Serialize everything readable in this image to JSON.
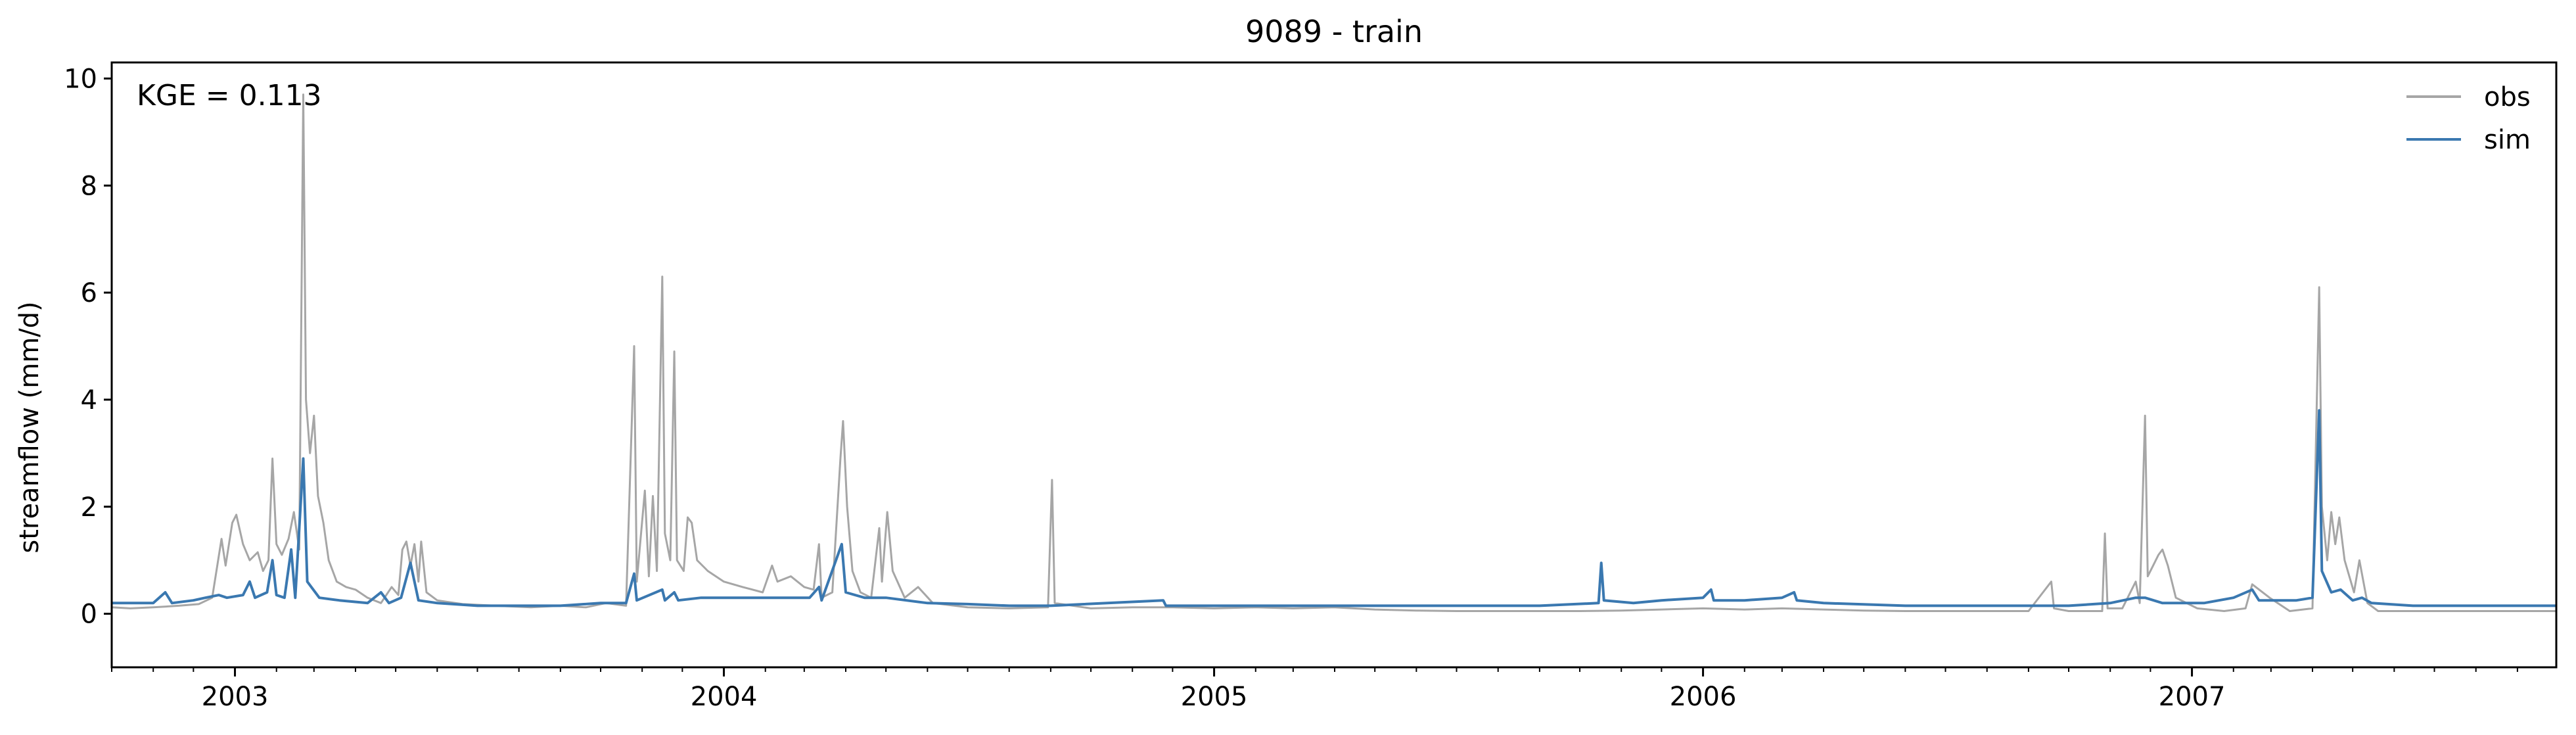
{
  "chart_data": {
    "type": "line",
    "title": "9089 - train",
    "xlabel": "",
    "ylabel": "streamflow (mm/d)",
    "annotation": "KGE = 0.113",
    "xlim": [
      "2002-10-01",
      "2007-09-30"
    ],
    "ylim": [
      -1.0,
      10.3
    ],
    "y_ticks": [
      0,
      2,
      4,
      6,
      8,
      10
    ],
    "x_ticks": [
      {
        "date": "2003-01-01",
        "label": "2003"
      },
      {
        "date": "2004-01-01",
        "label": "2004"
      },
      {
        "date": "2005-01-01",
        "label": "2005"
      },
      {
        "date": "2006-01-01",
        "label": "2006"
      },
      {
        "date": "2007-01-01",
        "label": "2007"
      }
    ],
    "grid": false,
    "legend": {
      "position": "top-right"
    },
    "series": [
      {
        "name": "obs",
        "color": "#a6a6a6",
        "points": [
          [
            "2002-10-01",
            0.12
          ],
          [
            "2002-10-15",
            0.1
          ],
          [
            "2002-11-01",
            0.12
          ],
          [
            "2002-11-20",
            0.15
          ],
          [
            "2002-12-05",
            0.18
          ],
          [
            "2002-12-15",
            0.3
          ],
          [
            "2002-12-22",
            1.4
          ],
          [
            "2002-12-25",
            0.9
          ],
          [
            "2002-12-30",
            1.7
          ],
          [
            "2003-01-02",
            1.85
          ],
          [
            "2003-01-07",
            1.3
          ],
          [
            "2003-01-12",
            1.0
          ],
          [
            "2003-01-18",
            1.15
          ],
          [
            "2003-01-22",
            0.8
          ],
          [
            "2003-01-26",
            1.0
          ],
          [
            "2003-01-29",
            2.9
          ],
          [
            "2003-02-01",
            1.3
          ],
          [
            "2003-02-05",
            1.1
          ],
          [
            "2003-02-10",
            1.4
          ],
          [
            "2003-02-14",
            1.9
          ],
          [
            "2003-02-18",
            1.2
          ],
          [
            "2003-02-21",
            9.7
          ],
          [
            "2003-02-23",
            4.0
          ],
          [
            "2003-02-26",
            3.0
          ],
          [
            "2003-03-01",
            3.7
          ],
          [
            "2003-03-04",
            2.2
          ],
          [
            "2003-03-08",
            1.7
          ],
          [
            "2003-03-12",
            1.0
          ],
          [
            "2003-03-18",
            0.6
          ],
          [
            "2003-03-25",
            0.5
          ],
          [
            "2003-04-01",
            0.45
          ],
          [
            "2003-04-10",
            0.3
          ],
          [
            "2003-04-20",
            0.2
          ],
          [
            "2003-04-28",
            0.5
          ],
          [
            "2003-05-03",
            0.35
          ],
          [
            "2003-05-06",
            1.2
          ],
          [
            "2003-05-09",
            1.35
          ],
          [
            "2003-05-12",
            0.9
          ],
          [
            "2003-05-15",
            1.3
          ],
          [
            "2003-05-18",
            0.6
          ],
          [
            "2003-05-20",
            1.35
          ],
          [
            "2003-05-24",
            0.4
          ],
          [
            "2003-06-01",
            0.25
          ],
          [
            "2003-06-20",
            0.18
          ],
          [
            "2003-07-15",
            0.15
          ],
          [
            "2003-08-10",
            0.12
          ],
          [
            "2003-09-01",
            0.15
          ],
          [
            "2003-09-20",
            0.12
          ],
          [
            "2003-10-05",
            0.2
          ],
          [
            "2003-10-20",
            0.15
          ],
          [
            "2003-10-26",
            5.0
          ],
          [
            "2003-10-28",
            0.6
          ],
          [
            "2003-11-03",
            2.3
          ],
          [
            "2003-11-06",
            0.7
          ],
          [
            "2003-11-09",
            2.2
          ],
          [
            "2003-11-12",
            0.8
          ],
          [
            "2003-11-16",
            6.3
          ],
          [
            "2003-11-18",
            1.5
          ],
          [
            "2003-11-22",
            1.0
          ],
          [
            "2003-11-25",
            4.9
          ],
          [
            "2003-11-27",
            1.0
          ],
          [
            "2003-12-02",
            0.8
          ],
          [
            "2003-12-05",
            1.8
          ],
          [
            "2003-12-08",
            1.7
          ],
          [
            "2003-12-12",
            1.0
          ],
          [
            "2003-12-20",
            0.8
          ],
          [
            "2004-01-01",
            0.6
          ],
          [
            "2004-01-15",
            0.5
          ],
          [
            "2004-01-30",
            0.4
          ],
          [
            "2004-02-06",
            0.9
          ],
          [
            "2004-02-10",
            0.6
          ],
          [
            "2004-02-20",
            0.7
          ],
          [
            "2004-03-01",
            0.5
          ],
          [
            "2004-03-08",
            0.45
          ],
          [
            "2004-03-12",
            1.3
          ],
          [
            "2004-03-14",
            0.3
          ],
          [
            "2004-03-22",
            0.4
          ],
          [
            "2004-03-28",
            2.9
          ],
          [
            "2004-03-30",
            3.6
          ],
          [
            "2004-04-02",
            2.0
          ],
          [
            "2004-04-06",
            0.8
          ],
          [
            "2004-04-12",
            0.4
          ],
          [
            "2004-04-20",
            0.3
          ],
          [
            "2004-04-26",
            1.6
          ],
          [
            "2004-04-28",
            0.6
          ],
          [
            "2004-05-02",
            1.9
          ],
          [
            "2004-05-06",
            0.8
          ],
          [
            "2004-05-15",
            0.3
          ],
          [
            "2004-05-25",
            0.5
          ],
          [
            "2004-06-05",
            0.2
          ],
          [
            "2004-07-01",
            0.12
          ],
          [
            "2004-08-01",
            0.1
          ],
          [
            "2004-08-30",
            0.12
          ],
          [
            "2004-09-02",
            2.5
          ],
          [
            "2004-09-04",
            0.2
          ],
          [
            "2004-10-01",
            0.1
          ],
          [
            "2004-11-01",
            0.12
          ],
          [
            "2004-12-01",
            0.12
          ],
          [
            "2005-01-01",
            0.1
          ],
          [
            "2005-02-01",
            0.12
          ],
          [
            "2005-03-01",
            0.1
          ],
          [
            "2005-04-01",
            0.12
          ],
          [
            "2005-05-01",
            0.08
          ],
          [
            "2005-06-01",
            0.06
          ],
          [
            "2005-07-01",
            0.05
          ],
          [
            "2005-08-01",
            0.05
          ],
          [
            "2005-09-01",
            0.05
          ],
          [
            "2005-10-01",
            0.05
          ],
          [
            "2005-11-01",
            0.06
          ],
          [
            "2005-12-01",
            0.08
          ],
          [
            "2006-01-01",
            0.1
          ],
          [
            "2006-02-01",
            0.08
          ],
          [
            "2006-03-01",
            0.1
          ],
          [
            "2006-04-01",
            0.08
          ],
          [
            "2006-05-01",
            0.06
          ],
          [
            "2006-06-01",
            0.05
          ],
          [
            "2006-07-01",
            0.05
          ],
          [
            "2006-08-01",
            0.05
          ],
          [
            "2006-09-01",
            0.05
          ],
          [
            "2006-09-18",
            0.6
          ],
          [
            "2006-09-20",
            0.1
          ],
          [
            "2006-10-01",
            0.05
          ],
          [
            "2006-10-26",
            0.05
          ],
          [
            "2006-10-28",
            1.5
          ],
          [
            "2006-10-30",
            0.1
          ],
          [
            "2006-11-10",
            0.1
          ],
          [
            "2006-11-20",
            0.6
          ],
          [
            "2006-11-23",
            0.2
          ],
          [
            "2006-11-27",
            3.7
          ],
          [
            "2006-11-29",
            0.7
          ],
          [
            "2006-12-03",
            0.9
          ],
          [
            "2006-12-07",
            1.1
          ],
          [
            "2006-12-10",
            1.2
          ],
          [
            "2006-12-14",
            0.9
          ],
          [
            "2006-12-20",
            0.3
          ],
          [
            "2007-01-05",
            0.1
          ],
          [
            "2007-01-25",
            0.05
          ],
          [
            "2007-02-10",
            0.1
          ],
          [
            "2007-02-15",
            0.55
          ],
          [
            "2007-02-28",
            0.3
          ],
          [
            "2007-03-15",
            0.05
          ],
          [
            "2007-04-01",
            0.1
          ],
          [
            "2007-04-06",
            6.1
          ],
          [
            "2007-04-08",
            2.0
          ],
          [
            "2007-04-12",
            1.0
          ],
          [
            "2007-04-15",
            1.9
          ],
          [
            "2007-04-18",
            1.3
          ],
          [
            "2007-04-21",
            1.8
          ],
          [
            "2007-04-25",
            1.0
          ],
          [
            "2007-05-02",
            0.4
          ],
          [
            "2007-05-06",
            1.0
          ],
          [
            "2007-05-12",
            0.2
          ],
          [
            "2007-05-20",
            0.05
          ],
          [
            "2007-06-15",
            0.05
          ],
          [
            "2007-07-15",
            0.05
          ],
          [
            "2007-08-15",
            0.05
          ],
          [
            "2007-09-30",
            0.05
          ]
        ]
      },
      {
        "name": "sim",
        "color": "#3a78b0",
        "points": [
          [
            "2002-10-01",
            0.2
          ],
          [
            "2002-10-15",
            0.2
          ],
          [
            "2002-11-01",
            0.2
          ],
          [
            "2002-11-10",
            0.4
          ],
          [
            "2002-11-15",
            0.2
          ],
          [
            "2002-12-01",
            0.25
          ],
          [
            "2002-12-10",
            0.3
          ],
          [
            "2002-12-20",
            0.35
          ],
          [
            "2002-12-26",
            0.3
          ],
          [
            "2003-01-07",
            0.35
          ],
          [
            "2003-01-12",
            0.6
          ],
          [
            "2003-01-16",
            0.3
          ],
          [
            "2003-01-25",
            0.4
          ],
          [
            "2003-01-29",
            1.0
          ],
          [
            "2003-02-01",
            0.35
          ],
          [
            "2003-02-07",
            0.3
          ],
          [
            "2003-02-12",
            1.2
          ],
          [
            "2003-02-15",
            0.3
          ],
          [
            "2003-02-21",
            2.9
          ],
          [
            "2003-02-24",
            0.6
          ],
          [
            "2003-03-05",
            0.3
          ],
          [
            "2003-03-20",
            0.25
          ],
          [
            "2003-04-10",
            0.2
          ],
          [
            "2003-04-20",
            0.4
          ],
          [
            "2003-04-26",
            0.2
          ],
          [
            "2003-05-05",
            0.3
          ],
          [
            "2003-05-12",
            0.95
          ],
          [
            "2003-05-18",
            0.25
          ],
          [
            "2003-06-01",
            0.2
          ],
          [
            "2003-07-01",
            0.15
          ],
          [
            "2003-08-01",
            0.15
          ],
          [
            "2003-09-01",
            0.15
          ],
          [
            "2003-10-01",
            0.2
          ],
          [
            "2003-10-20",
            0.2
          ],
          [
            "2003-10-26",
            0.75
          ],
          [
            "2003-10-28",
            0.25
          ],
          [
            "2003-11-16",
            0.45
          ],
          [
            "2003-11-18",
            0.25
          ],
          [
            "2003-11-25",
            0.4
          ],
          [
            "2003-11-28",
            0.25
          ],
          [
            "2003-12-15",
            0.3
          ],
          [
            "2004-01-10",
            0.3
          ],
          [
            "2004-02-10",
            0.3
          ],
          [
            "2004-03-05",
            0.3
          ],
          [
            "2004-03-12",
            0.5
          ],
          [
            "2004-03-14",
            0.25
          ],
          [
            "2004-03-29",
            1.3
          ],
          [
            "2004-04-01",
            0.4
          ],
          [
            "2004-04-15",
            0.3
          ],
          [
            "2004-05-01",
            0.3
          ],
          [
            "2004-06-01",
            0.2
          ],
          [
            "2004-07-01",
            0.18
          ],
          [
            "2004-08-01",
            0.15
          ],
          [
            "2004-09-01",
            0.15
          ],
          [
            "2004-11-24",
            0.25
          ],
          [
            "2004-11-26",
            0.15
          ],
          [
            "2005-01-01",
            0.15
          ],
          [
            "2005-03-01",
            0.15
          ],
          [
            "2005-05-01",
            0.15
          ],
          [
            "2005-07-01",
            0.15
          ],
          [
            "2005-09-01",
            0.15
          ],
          [
            "2005-10-15",
            0.2
          ],
          [
            "2005-10-17",
            0.95
          ],
          [
            "2005-10-19",
            0.25
          ],
          [
            "2005-11-10",
            0.2
          ],
          [
            "2005-12-01",
            0.25
          ],
          [
            "2006-01-01",
            0.3
          ],
          [
            "2006-01-07",
            0.45
          ],
          [
            "2006-01-09",
            0.25
          ],
          [
            "2006-02-01",
            0.25
          ],
          [
            "2006-03-01",
            0.3
          ],
          [
            "2006-03-10",
            0.4
          ],
          [
            "2006-03-12",
            0.25
          ],
          [
            "2006-04-01",
            0.2
          ],
          [
            "2006-06-01",
            0.15
          ],
          [
            "2006-08-01",
            0.15
          ],
          [
            "2006-10-01",
            0.15
          ],
          [
            "2006-11-01",
            0.2
          ],
          [
            "2006-11-20",
            0.3
          ],
          [
            "2006-11-27",
            0.3
          ],
          [
            "2006-12-10",
            0.2
          ],
          [
            "2007-01-10",
            0.2
          ],
          [
            "2007-02-01",
            0.3
          ],
          [
            "2007-02-15",
            0.45
          ],
          [
            "2007-02-20",
            0.25
          ],
          [
            "2007-03-20",
            0.25
          ],
          [
            "2007-04-01",
            0.3
          ],
          [
            "2007-04-06",
            3.8
          ],
          [
            "2007-04-08",
            0.8
          ],
          [
            "2007-04-15",
            0.4
          ],
          [
            "2007-04-22",
            0.45
          ],
          [
            "2007-05-01",
            0.25
          ],
          [
            "2007-05-08",
            0.3
          ],
          [
            "2007-05-15",
            0.2
          ],
          [
            "2007-06-15",
            0.15
          ],
          [
            "2007-08-01",
            0.15
          ],
          [
            "2007-09-30",
            0.15
          ]
        ]
      }
    ]
  }
}
